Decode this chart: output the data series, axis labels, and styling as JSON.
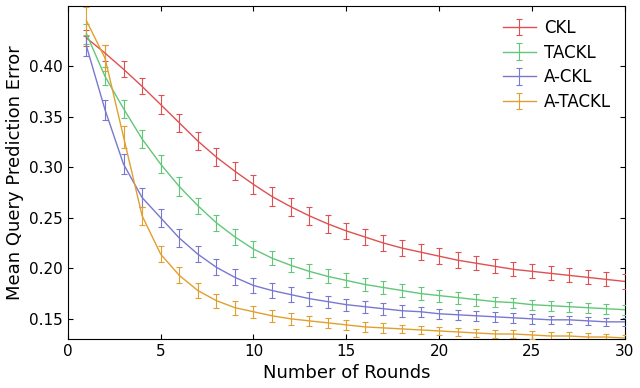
{
  "title": "",
  "xlabel": "Number of Rounds",
  "ylabel": "Mean Query Prediction Error",
  "xlim": [
    0,
    30
  ],
  "ylim": [
    0.13,
    0.46
  ],
  "yticks": [
    0.15,
    0.2,
    0.25,
    0.3,
    0.35,
    0.4
  ],
  "xticks": [
    0,
    5,
    10,
    15,
    20,
    25,
    30
  ],
  "legend_labels": [
    "CKL",
    "TACKL",
    "A-CKL",
    "A-TACKL"
  ],
  "colors": [
    "#e05050",
    "#60c878",
    "#7878d0",
    "#e0a030"
  ],
  "series": {
    "CKL": {
      "x": [
        1,
        2,
        3,
        4,
        5,
        6,
        7,
        8,
        9,
        10,
        11,
        12,
        13,
        14,
        15,
        16,
        17,
        18,
        19,
        20,
        21,
        22,
        23,
        24,
        25,
        26,
        27,
        28,
        29,
        30
      ],
      "y": [
        0.428,
        0.413,
        0.397,
        0.38,
        0.362,
        0.344,
        0.326,
        0.31,
        0.296,
        0.283,
        0.271,
        0.261,
        0.252,
        0.244,
        0.237,
        0.231,
        0.225,
        0.22,
        0.216,
        0.212,
        0.208,
        0.205,
        0.202,
        0.199,
        0.197,
        0.195,
        0.193,
        0.191,
        0.189,
        0.187
      ],
      "yerr": [
        0.008,
        0.008,
        0.008,
        0.008,
        0.009,
        0.009,
        0.009,
        0.009,
        0.009,
        0.009,
        0.009,
        0.009,
        0.009,
        0.009,
        0.008,
        0.008,
        0.008,
        0.008,
        0.008,
        0.008,
        0.008,
        0.007,
        0.007,
        0.007,
        0.007,
        0.007,
        0.007,
        0.007,
        0.007,
        0.007
      ]
    },
    "TACKL": {
      "x": [
        1,
        2,
        3,
        4,
        5,
        6,
        7,
        8,
        9,
        10,
        11,
        12,
        13,
        14,
        15,
        16,
        17,
        18,
        19,
        20,
        21,
        22,
        23,
        24,
        25,
        26,
        27,
        28,
        29,
        30
      ],
      "y": [
        0.432,
        0.39,
        0.358,
        0.328,
        0.303,
        0.281,
        0.262,
        0.245,
        0.231,
        0.219,
        0.21,
        0.203,
        0.197,
        0.192,
        0.188,
        0.184,
        0.181,
        0.178,
        0.175,
        0.173,
        0.171,
        0.169,
        0.167,
        0.166,
        0.164,
        0.163,
        0.162,
        0.161,
        0.16,
        0.159
      ],
      "yerr": [
        0.01,
        0.009,
        0.009,
        0.009,
        0.009,
        0.009,
        0.008,
        0.008,
        0.008,
        0.008,
        0.007,
        0.007,
        0.007,
        0.007,
        0.007,
        0.006,
        0.006,
        0.006,
        0.006,
        0.006,
        0.006,
        0.006,
        0.005,
        0.005,
        0.005,
        0.005,
        0.005,
        0.005,
        0.005,
        0.005
      ]
    },
    "A-CKL": {
      "x": [
        1,
        2,
        3,
        4,
        5,
        6,
        7,
        8,
        9,
        10,
        11,
        12,
        13,
        14,
        15,
        16,
        17,
        18,
        19,
        20,
        21,
        22,
        23,
        24,
        25,
        26,
        27,
        28,
        29,
        30
      ],
      "y": [
        0.42,
        0.357,
        0.303,
        0.27,
        0.25,
        0.23,
        0.214,
        0.201,
        0.191,
        0.183,
        0.178,
        0.174,
        0.17,
        0.167,
        0.164,
        0.162,
        0.16,
        0.158,
        0.157,
        0.155,
        0.154,
        0.153,
        0.152,
        0.151,
        0.15,
        0.149,
        0.149,
        0.148,
        0.147,
        0.147
      ],
      "yerr": [
        0.01,
        0.01,
        0.01,
        0.009,
        0.009,
        0.009,
        0.008,
        0.008,
        0.008,
        0.007,
        0.007,
        0.007,
        0.007,
        0.006,
        0.006,
        0.006,
        0.006,
        0.006,
        0.005,
        0.005,
        0.005,
        0.005,
        0.005,
        0.005,
        0.005,
        0.004,
        0.004,
        0.004,
        0.004,
        0.004
      ]
    },
    "A-TACKL": {
      "x": [
        1,
        2,
        3,
        4,
        5,
        6,
        7,
        8,
        9,
        10,
        11,
        12,
        13,
        14,
        15,
        16,
        17,
        18,
        19,
        20,
        21,
        22,
        23,
        24,
        25,
        26,
        27,
        28,
        29,
        30
      ],
      "y": [
        0.445,
        0.408,
        0.33,
        0.252,
        0.214,
        0.193,
        0.178,
        0.168,
        0.161,
        0.157,
        0.153,
        0.15,
        0.148,
        0.146,
        0.144,
        0.142,
        0.141,
        0.14,
        0.139,
        0.138,
        0.137,
        0.136,
        0.135,
        0.135,
        0.134,
        0.133,
        0.133,
        0.132,
        0.132,
        0.131
      ],
      "yerr": [
        0.014,
        0.013,
        0.011,
        0.009,
        0.008,
        0.008,
        0.007,
        0.007,
        0.007,
        0.006,
        0.006,
        0.006,
        0.005,
        0.005,
        0.005,
        0.005,
        0.005,
        0.004,
        0.004,
        0.004,
        0.004,
        0.004,
        0.004,
        0.004,
        0.004,
        0.004,
        0.004,
        0.004,
        0.003,
        0.003
      ]
    }
  },
  "background_color": "#ffffff",
  "legend_fontsize": 12,
  "axis_fontsize": 13,
  "tick_fontsize": 11,
  "figsize": [
    6.4,
    3.88
  ],
  "dpi": 100
}
